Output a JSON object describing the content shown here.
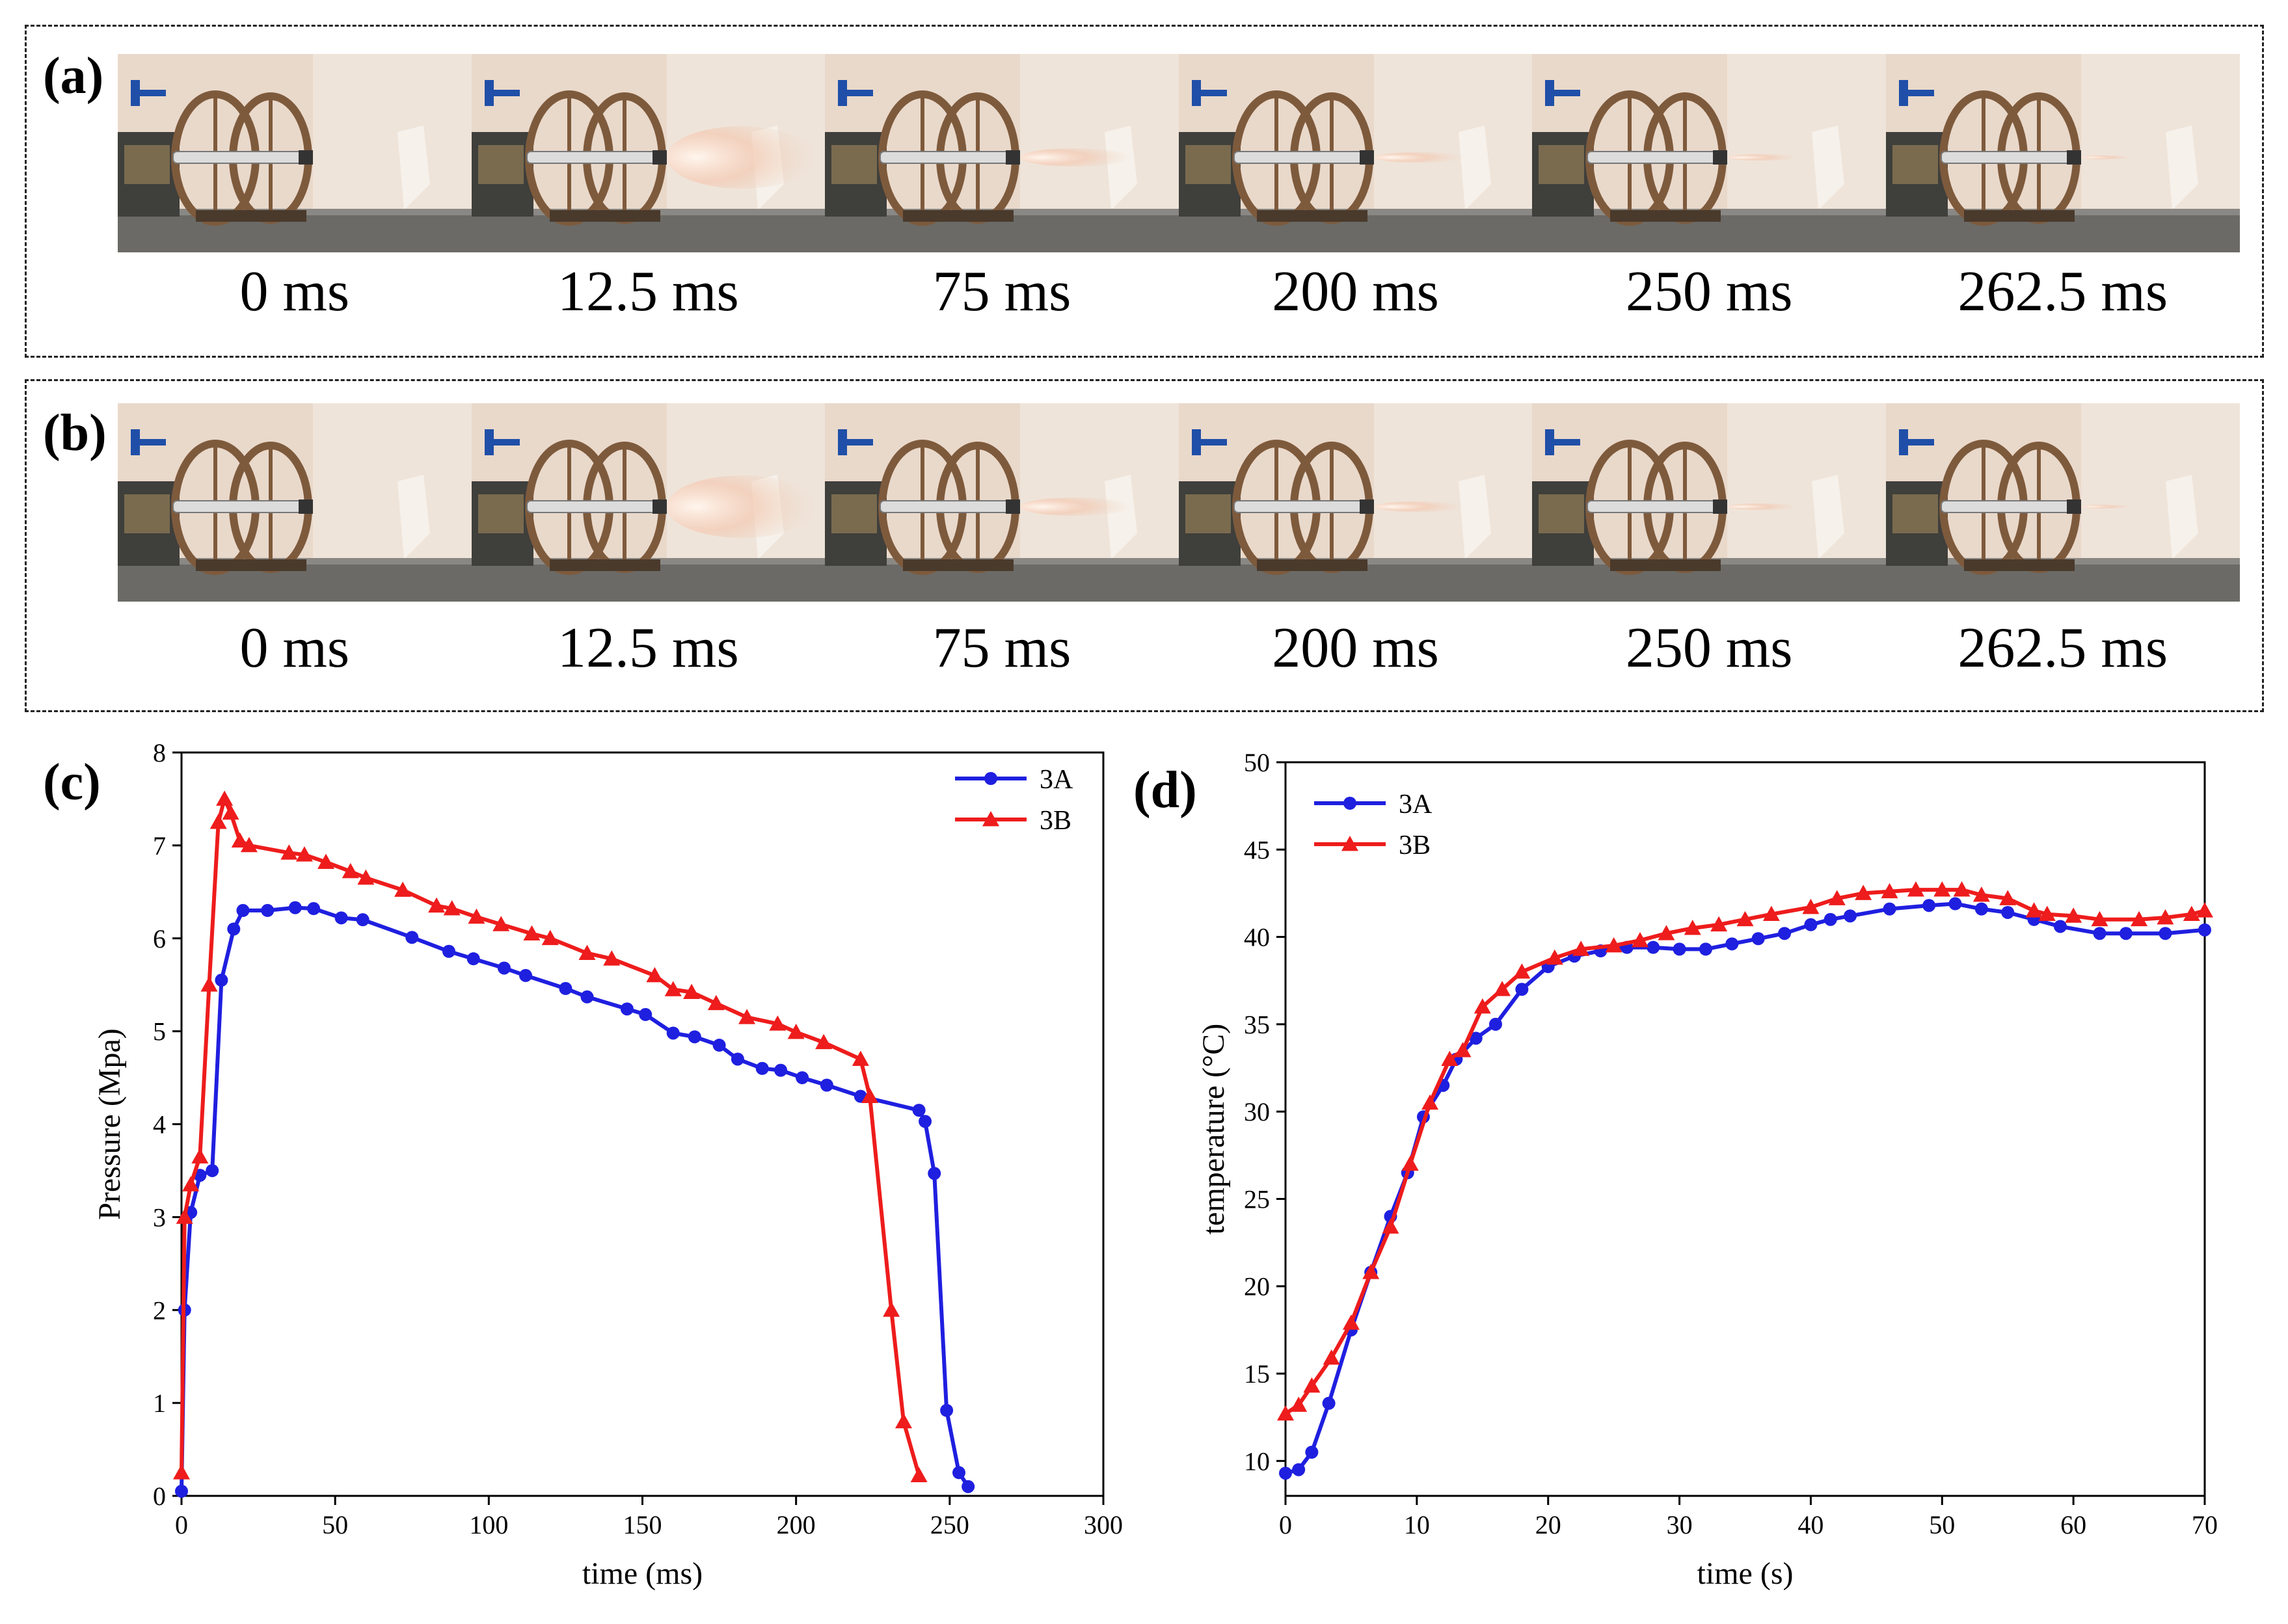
{
  "panels": {
    "a": {
      "label": "(a)",
      "frames": [
        "0 ms",
        "12.5 ms",
        "75 ms",
        "200 ms",
        "250 ms",
        "262.5 ms"
      ]
    },
    "b": {
      "label": "(b)",
      "frames": [
        "0 ms",
        "12.5 ms",
        "75 ms",
        "200 ms",
        "250 ms",
        "262.5 ms"
      ]
    },
    "c": {
      "label": "(c)"
    },
    "d": {
      "label": "(d)"
    }
  },
  "colors": {
    "series_3A": "#1f1fe0",
    "series_3B": "#ee1c1c",
    "axis": "#000000"
  },
  "chart_data": [
    {
      "id": "pressure",
      "type": "line",
      "title": "",
      "xlabel": "time (ms)",
      "ylabel": "Pressure (Mpa)",
      "xlim": [
        0,
        300
      ],
      "ylim": [
        0,
        8
      ],
      "xticks": [
        0,
        50,
        100,
        150,
        200,
        250,
        300
      ],
      "yticks": [
        0,
        1,
        2,
        3,
        4,
        5,
        6,
        7,
        8
      ],
      "legend": "top-right",
      "series": [
        {
          "name": "3A",
          "marker": "circle",
          "x": [
            0,
            1,
            3,
            6,
            10,
            13,
            17,
            20,
            28,
            37,
            43,
            52,
            59,
            75,
            87,
            95,
            105,
            112,
            125,
            132,
            145,
            151,
            160,
            167,
            175,
            181,
            189,
            195,
            202,
            210,
            221,
            240,
            242,
            245,
            249,
            253,
            256
          ],
          "y": [
            0.05,
            2.0,
            3.05,
            3.45,
            3.5,
            5.55,
            6.1,
            6.3,
            6.3,
            6.33,
            6.32,
            6.22,
            6.2,
            6.01,
            5.86,
            5.78,
            5.68,
            5.6,
            5.46,
            5.37,
            5.24,
            5.18,
            4.98,
            4.94,
            4.85,
            4.7,
            4.6,
            4.58,
            4.5,
            4.42,
            4.3,
            4.15,
            4.03,
            3.47,
            0.92,
            0.25,
            0.1
          ]
        },
        {
          "name": "3B",
          "marker": "triangle",
          "x": [
            0,
            1,
            3,
            6,
            9,
            12,
            14,
            16,
            19,
            22,
            35,
            40,
            47,
            55,
            60,
            72,
            83,
            88,
            96,
            104,
            114,
            120,
            132,
            140,
            154,
            160,
            166,
            174,
            184,
            194,
            200,
            209,
            221,
            224,
            231,
            235,
            240
          ],
          "y": [
            0.25,
            3.0,
            3.35,
            3.65,
            5.5,
            7.25,
            7.5,
            7.35,
            7.05,
            7.0,
            6.92,
            6.9,
            6.82,
            6.72,
            6.65,
            6.52,
            6.35,
            6.32,
            6.23,
            6.15,
            6.05,
            6.0,
            5.84,
            5.78,
            5.6,
            5.45,
            5.42,
            5.3,
            5.15,
            5.08,
            4.99,
            4.88,
            4.7,
            4.3,
            2.0,
            0.8,
            0.22
          ]
        }
      ]
    },
    {
      "id": "temperature",
      "type": "line",
      "title": "",
      "xlabel": "time (s)",
      "ylabel": "temperature (°C)",
      "xlim": [
        0,
        70
      ],
      "ylim": [
        8,
        50
      ],
      "xticks": [
        0,
        10,
        20,
        30,
        40,
        50,
        60,
        70
      ],
      "yticks": [
        10,
        15,
        20,
        25,
        30,
        35,
        40,
        45,
        50
      ],
      "legend": "top-left",
      "series": [
        {
          "name": "3A",
          "marker": "circle",
          "x": [
            0,
            1,
            2,
            3.3,
            5,
            6.5,
            8,
            9.3,
            10.5,
            12,
            13,
            14.5,
            16,
            18,
            20,
            22,
            24,
            26,
            28,
            30,
            32,
            34,
            36,
            38,
            40,
            41.5,
            43,
            46,
            49,
            51,
            53,
            55,
            57,
            59,
            62,
            64,
            67,
            70
          ],
          "y": [
            9.3,
            9.5,
            10.5,
            13.3,
            17.5,
            20.8,
            24.0,
            26.5,
            29.7,
            31.5,
            33.0,
            34.2,
            35.0,
            37.0,
            38.3,
            38.9,
            39.2,
            39.4,
            39.4,
            39.3,
            39.3,
            39.6,
            39.9,
            40.2,
            40.7,
            41.0,
            41.2,
            41.6,
            41.8,
            41.9,
            41.6,
            41.4,
            41.0,
            40.6,
            40.2,
            40.2,
            40.2,
            40.4
          ]
        },
        {
          "name": "3B",
          "marker": "triangle",
          "x": [
            0,
            1,
            2,
            3.5,
            5,
            6.5,
            8,
            9.5,
            11,
            12.5,
            13.5,
            15,
            16.5,
            18,
            20.5,
            22.5,
            25,
            27,
            29,
            31,
            33,
            35,
            37,
            40,
            42,
            44,
            46,
            48,
            50,
            51.5,
            53,
            55,
            57,
            58,
            60,
            62,
            65,
            67,
            69,
            70
          ],
          "y": [
            12.7,
            13.2,
            14.3,
            15.9,
            17.9,
            20.8,
            23.4,
            27.0,
            30.5,
            33.0,
            33.5,
            36.0,
            37.0,
            38.0,
            38.8,
            39.3,
            39.5,
            39.8,
            40.2,
            40.5,
            40.7,
            41.0,
            41.3,
            41.7,
            42.2,
            42.5,
            42.6,
            42.7,
            42.7,
            42.7,
            42.4,
            42.2,
            41.5,
            41.3,
            41.2,
            41.0,
            41.0,
            41.1,
            41.3,
            41.5
          ]
        }
      ]
    }
  ]
}
